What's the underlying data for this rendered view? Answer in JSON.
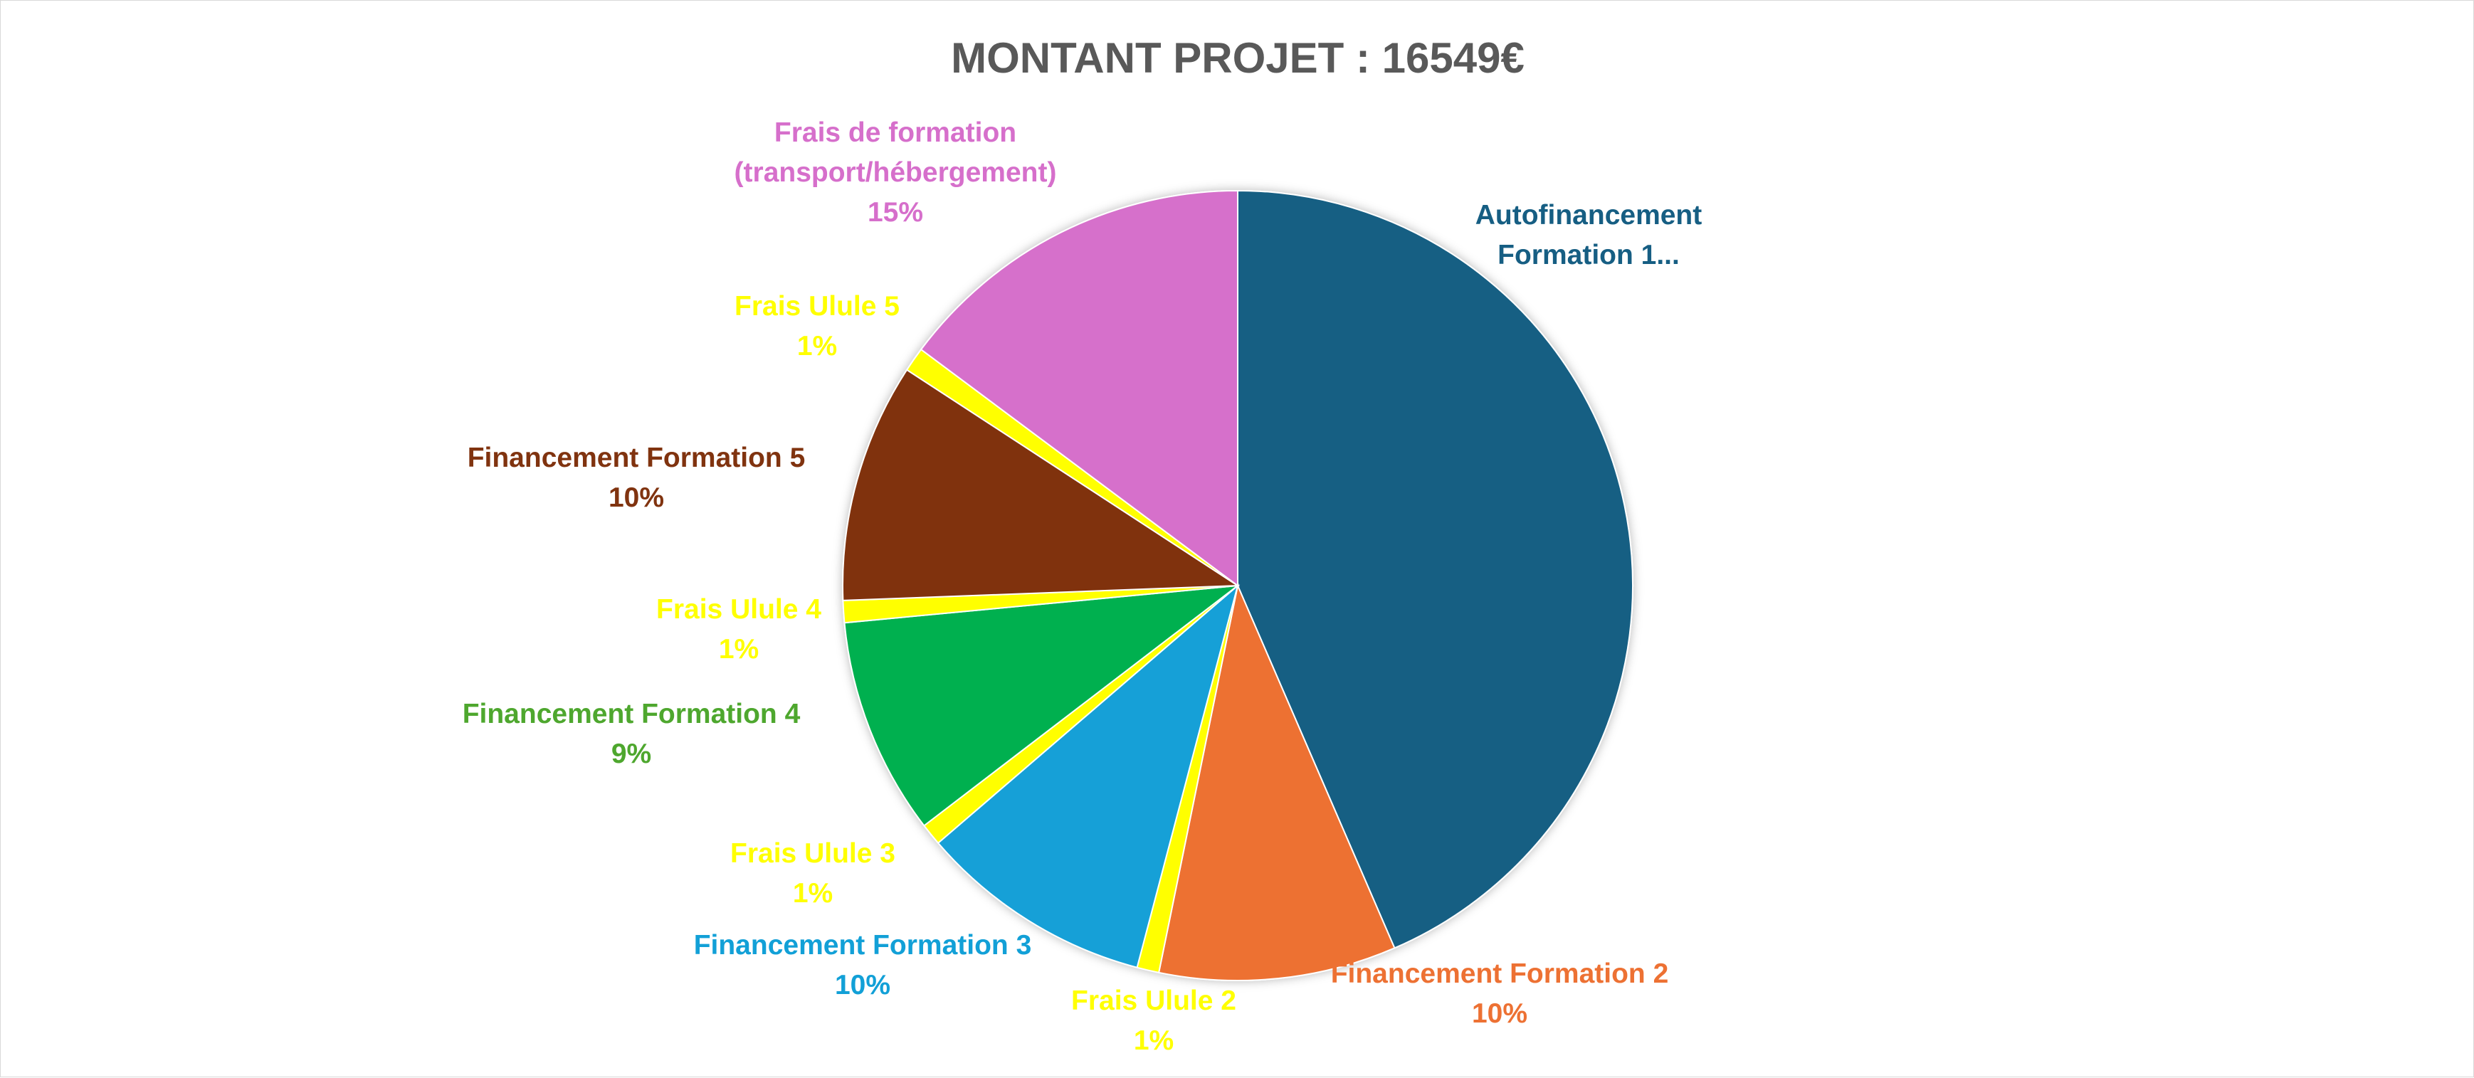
{
  "chart_data": {
    "type": "pie",
    "title": "MONTANT PROJET : 16549€",
    "start_angle_deg": 0,
    "direction": "clockwise",
    "slices": [
      {
        "id": "autofinancement",
        "label_lines": [
          "Autofinancement",
          "Formation 1..."
        ],
        "pct_label": "",
        "value": 43.5,
        "color": "#165E83"
      },
      {
        "id": "financement-formation-2",
        "label_lines": [
          "Financement Formation 2"
        ],
        "pct_label": "10%",
        "value": 9.7,
        "color": "#ED7133"
      },
      {
        "id": "frais-ulule-2",
        "label_lines": [
          "Frais Ulule 2"
        ],
        "pct_label": "1%",
        "value": 0.9,
        "color": "#FFFF00"
      },
      {
        "id": "financement-formation-3",
        "label_lines": [
          "Financement Formation  3"
        ],
        "pct_label": "10%",
        "value": 9.6,
        "color": "#12A0D7"
      },
      {
        "id": "frais-ulule-3",
        "label_lines": [
          "Frais Ulule 3"
        ],
        "pct_label": "1%",
        "value": 0.9,
        "color": "#FFFF00"
      },
      {
        "id": "financement-formation-4",
        "label_lines": [
          "Financement Formation 4"
        ],
        "pct_label": "9%",
        "value": 8.9,
        "color": "#00B04F"
      },
      {
        "id": "frais-ulule-4",
        "label_lines": [
          "Frais Ulule 4"
        ],
        "pct_label": "1%",
        "value": 0.9,
        "color": "#FFFF00"
      },
      {
        "id": "financement-formation-5",
        "label_lines": [
          "Financement Formation 5"
        ],
        "pct_label": "10%",
        "value": 9.8,
        "color": "#80330F"
      },
      {
        "id": "frais-ulule-5",
        "label_lines": [
          "Frais Ulule 5"
        ],
        "pct_label": "1%",
        "value": 1.0,
        "color": "#FFFF00"
      },
      {
        "id": "frais-formation",
        "label_lines": [
          "Frais de formation",
          "(transport/hébergement)"
        ],
        "pct_label": "15%",
        "value": 14.8,
        "color": "#D66FCB"
      }
    ],
    "label_colors": {
      "autofinancement": "#165E83",
      "financement-formation-2": "#ED7133",
      "frais-ulule-2": "#FFFF00",
      "financement-formation-3": "#12A0D7",
      "frais-ulule-3": "#FFFF00",
      "financement-formation-4": "#4EA72E",
      "frais-ulule-4": "#FFFF00",
      "financement-formation-5": "#80330F",
      "frais-ulule-5": "#FFFF00",
      "frais-formation": "#D66FCB"
    }
  }
}
